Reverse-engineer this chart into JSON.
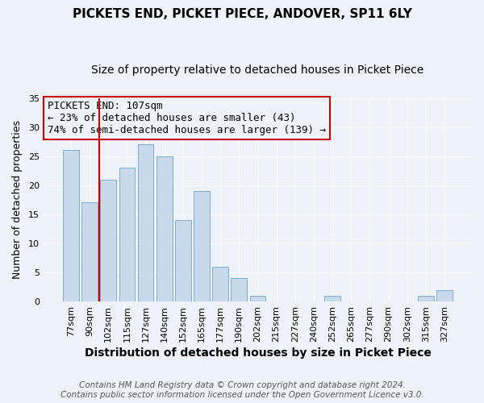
{
  "title": "PICKETS END, PICKET PIECE, ANDOVER, SP11 6LY",
  "subtitle": "Size of property relative to detached houses in Picket Piece",
  "xlabel": "Distribution of detached houses by size in Picket Piece",
  "ylabel": "Number of detached properties",
  "bar_color": "#c9d9ec",
  "bar_edge_color": "#7bafd4",
  "categories": [
    "77sqm",
    "90sqm",
    "102sqm",
    "115sqm",
    "127sqm",
    "140sqm",
    "152sqm",
    "165sqm",
    "177sqm",
    "190sqm",
    "202sqm",
    "215sqm",
    "227sqm",
    "240sqm",
    "252sqm",
    "265sqm",
    "277sqm",
    "290sqm",
    "302sqm",
    "315sqm",
    "327sqm"
  ],
  "values": [
    26,
    17,
    21,
    23,
    27,
    25,
    14,
    19,
    6,
    4,
    1,
    0,
    0,
    0,
    1,
    0,
    0,
    0,
    0,
    1,
    2
  ],
  "ylim": [
    0,
    35
  ],
  "yticks": [
    0,
    5,
    10,
    15,
    20,
    25,
    30,
    35
  ],
  "vline_index": 2,
  "vline_color": "#cc0000",
  "annotation_title": "PICKETS END: 107sqm",
  "annotation_line2": "← 23% of detached houses are smaller (43)",
  "annotation_line3": "74% of semi-detached houses are larger (139) →",
  "annotation_box_edge": "#cc0000",
  "footer_line1": "Contains HM Land Registry data © Crown copyright and database right 2024.",
  "footer_line2": "Contains public sector information licensed under the Open Government Licence v3.0.",
  "background_color": "#eef2f9",
  "grid_color": "#ffffff",
  "title_fontsize": 11,
  "subtitle_fontsize": 10,
  "xlabel_fontsize": 10,
  "ylabel_fontsize": 9,
  "tick_fontsize": 8,
  "annotation_fontsize": 9,
  "footer_fontsize": 7.5
}
